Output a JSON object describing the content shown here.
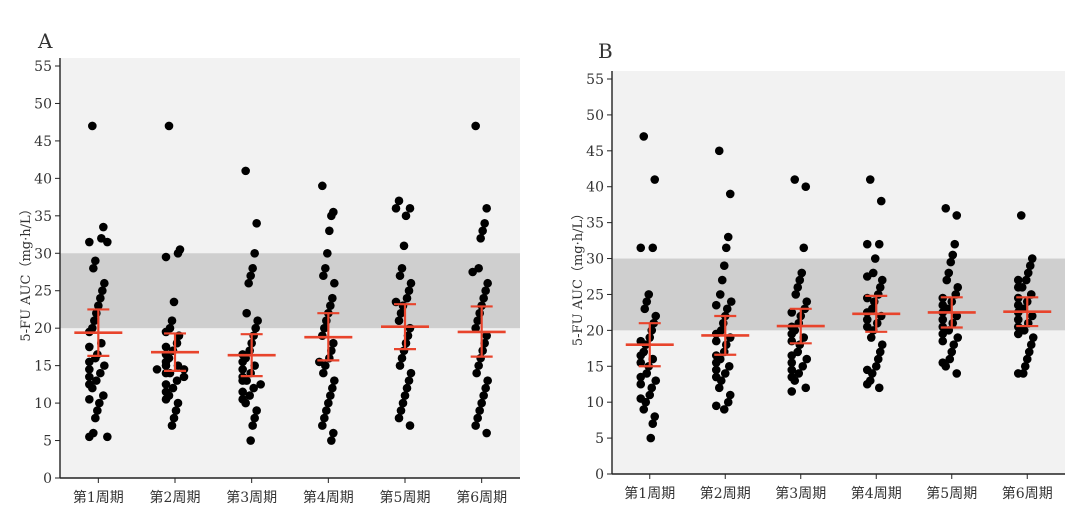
{
  "chart_data": [
    {
      "panel_label": "A",
      "type": "scatter",
      "ylabel": "5-FU AUC（mg·h/L）",
      "ylim": [
        0,
        55
      ],
      "yticks": [
        0,
        5,
        10,
        15,
        20,
        25,
        30,
        35,
        40,
        45,
        50,
        55
      ],
      "categories": [
        "第1周期",
        "第2周期",
        "第3周期",
        "第4周期",
        "第5周期",
        "第6周期"
      ],
      "reference_band": [
        20,
        30
      ],
      "series": [
        {
          "values": [
            47,
            33.5,
            32,
            31.5,
            31.5,
            29,
            28,
            26,
            25,
            24,
            23,
            22,
            21,
            20,
            19.5,
            18,
            17.5,
            16.5,
            16,
            15.5,
            15,
            14.5,
            14,
            13.5,
            13,
            12.5,
            12,
            11,
            10.5,
            10,
            9,
            8,
            6,
            5.5,
            5.5
          ]
        },
        {
          "values": [
            47,
            30.5,
            30,
            29.5,
            23.5,
            21,
            20,
            19.5,
            19,
            18,
            17.5,
            17,
            16.5,
            16,
            15.5,
            15,
            15,
            14.5,
            14.5,
            14,
            14,
            13.5,
            13,
            12.5,
            12,
            11.5,
            11,
            10.5,
            10,
            9,
            8,
            7
          ]
        },
        {
          "values": [
            41,
            34,
            30,
            28,
            27,
            26,
            22,
            21,
            20,
            19,
            18,
            17,
            16.5,
            16,
            15.5,
            15,
            14.5,
            14,
            13.5,
            13,
            13,
            12.5,
            12,
            11.5,
            11,
            10.5,
            10,
            9,
            8,
            7,
            5
          ]
        },
        {
          "values": [
            39,
            35.5,
            35,
            33,
            30,
            28,
            27,
            26,
            24,
            23,
            22,
            21,
            20,
            19,
            18,
            17,
            16,
            15.5,
            15,
            14,
            13,
            12,
            11,
            10,
            9,
            8,
            7,
            6,
            5
          ]
        },
        {
          "values": [
            37,
            36,
            36,
            35,
            31,
            28,
            27,
            26,
            25,
            24,
            23.5,
            23,
            22,
            21,
            20,
            19,
            18,
            17,
            16,
            15,
            14,
            13,
            12,
            11,
            10,
            9,
            8,
            7
          ]
        },
        {
          "values": [
            47,
            36,
            34,
            33,
            32,
            28,
            27.5,
            26,
            25,
            24,
            23,
            22,
            21,
            20,
            19,
            18,
            17,
            16,
            15,
            14,
            13,
            12,
            11,
            10,
            9,
            8,
            7,
            6
          ]
        }
      ],
      "summary": [
        {
          "mean": 19.4,
          "upper": 22.5,
          "lower": 16.3
        },
        {
          "mean": 16.8,
          "upper": 19.3,
          "lower": 14.3
        },
        {
          "mean": 16.4,
          "upper": 19.2,
          "lower": 13.6
        },
        {
          "mean": 18.8,
          "upper": 22.0,
          "lower": 15.7
        },
        {
          "mean": 20.2,
          "upper": 23.2,
          "lower": 17.2
        },
        {
          "mean": 19.5,
          "upper": 22.9,
          "lower": 16.2
        }
      ]
    },
    {
      "panel_label": "B",
      "type": "scatter",
      "ylabel": "5-FU AUC（mg·h/L）",
      "ylim": [
        0,
        55
      ],
      "yticks": [
        0,
        5,
        10,
        15,
        20,
        25,
        30,
        35,
        40,
        45,
        50,
        55
      ],
      "categories": [
        "第1周期",
        "第2周期",
        "第3周期",
        "第4周期",
        "第5周期",
        "第6周期"
      ],
      "reference_band": [
        20,
        30
      ],
      "series": [
        {
          "values": [
            47,
            41,
            31.5,
            31.5,
            25,
            24,
            23,
            22,
            21,
            20,
            19,
            18.5,
            18,
            17,
            16.5,
            16,
            15.5,
            15,
            14,
            13.5,
            13,
            12.5,
            12,
            11,
            10.5,
            10,
            9,
            8,
            7,
            5
          ]
        },
        {
          "values": [
            45,
            39,
            33,
            31.5,
            29,
            27,
            25,
            24,
            23.5,
            23,
            22,
            21,
            20,
            19.5,
            19,
            18.5,
            18,
            17,
            16.5,
            16,
            15.5,
            15,
            14.5,
            14,
            13.5,
            13,
            12,
            11,
            10,
            9.5,
            9
          ]
        },
        {
          "values": [
            41,
            40,
            31.5,
            28,
            27,
            26,
            25,
            24,
            23,
            22.5,
            22,
            21,
            20.5,
            20,
            19.5,
            19,
            18.5,
            18,
            17,
            16.5,
            16,
            15.5,
            15,
            14.5,
            14,
            13.5,
            13,
            12,
            11.5
          ]
        },
        {
          "values": [
            41,
            38,
            32,
            32,
            30,
            28,
            27.5,
            27,
            26,
            25,
            24.5,
            24,
            23,
            22.5,
            22,
            21.5,
            21,
            20.5,
            20,
            19,
            18,
            17,
            16,
            15,
            14.5,
            14,
            13,
            12.5,
            12
          ]
        },
        {
          "values": [
            37,
            36,
            32,
            30.5,
            29.5,
            28,
            27,
            26,
            25,
            24.5,
            24,
            23.5,
            23,
            22.5,
            22,
            21.5,
            21,
            20.5,
            20,
            19.5,
            19,
            18.5,
            18,
            17,
            16,
            15.5,
            15,
            14
          ]
        },
        {
          "values": [
            36,
            30,
            29,
            28,
            27,
            27,
            26,
            26,
            25,
            24.5,
            24,
            23.5,
            23,
            22.5,
            22,
            21.5,
            21,
            20.5,
            20,
            19.5,
            19,
            18,
            17,
            16,
            15,
            14,
            14
          ]
        }
      ],
      "summary": [
        {
          "mean": 18.0,
          "upper": 21.0,
          "lower": 15.0
        },
        {
          "mean": 19.3,
          "upper": 22.0,
          "lower": 16.6
        },
        {
          "mean": 20.6,
          "upper": 23.0,
          "lower": 18.2
        },
        {
          "mean": 22.3,
          "upper": 24.8,
          "lower": 19.8
        },
        {
          "mean": 22.5,
          "upper": 24.6,
          "lower": 20.4
        },
        {
          "mean": 22.6,
          "upper": 24.6,
          "lower": 20.6
        }
      ]
    }
  ],
  "colors": {
    "dot": "#000000",
    "summary": "#e8442c",
    "band": "#cfcfcf",
    "plot_bg": "#f2f2f2",
    "axis": "#222222"
  }
}
